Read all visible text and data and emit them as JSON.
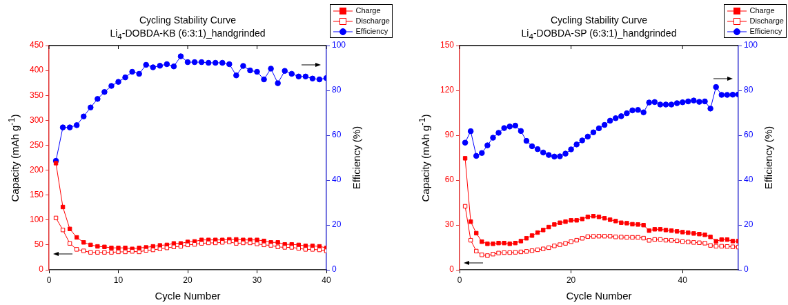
{
  "chart_data": [
    {
      "type": "line",
      "title": "Cycling Stability Curve",
      "subtitle": "Li$_{4}$-DOBDA-KB (6:3:1)_handgrinded",
      "xlabel": "Cycle Number",
      "ylabel": "Capacity (mAh g$^{-1}$)",
      "y2label": "Efficiency (%)",
      "x": [
        1,
        2,
        3,
        4,
        5,
        6,
        7,
        8,
        9,
        10,
        11,
        12,
        13,
        14,
        15,
        16,
        17,
        18,
        19,
        20,
        21,
        22,
        23,
        24,
        25,
        26,
        27,
        28,
        29,
        30,
        31,
        32,
        33,
        34,
        35,
        36,
        37,
        38,
        39,
        40
      ],
      "xlim": [
        0,
        40
      ],
      "xticks": [
        0,
        10,
        20,
        30,
        40
      ],
      "ylim": [
        0,
        450
      ],
      "yticks": [
        0,
        50,
        100,
        150,
        200,
        250,
        300,
        350,
        400,
        450
      ],
      "y2lim": [
        0,
        100
      ],
      "y2ticks": [
        0,
        20,
        40,
        60,
        80,
        100
      ],
      "grid": false,
      "legend": "top right",
      "line_style": "solid",
      "series": [
        {
          "name": "Charge",
          "color": "#ff0000",
          "marker": "square",
          "values": [
            214,
            126,
            82,
            65,
            55,
            50,
            47,
            46,
            44,
            44,
            44,
            42,
            44,
            45,
            47,
            49,
            50,
            53,
            53,
            56,
            57,
            60,
            60,
            60,
            60,
            61,
            61,
            60,
            60,
            60,
            58,
            55,
            55,
            51,
            51,
            50,
            48,
            48,
            47,
            44
          ]
        },
        {
          "name": "Discharge",
          "color": "#ff0000",
          "marker": "square",
          "values": [
            104,
            80,
            53,
            41,
            38,
            35,
            35,
            35,
            35,
            36,
            36,
            37,
            36,
            39,
            40,
            42,
            44,
            46,
            47,
            50,
            51,
            53,
            54,
            54,
            55,
            56,
            53,
            54,
            54,
            52,
            50,
            49,
            46,
            45,
            45,
            43,
            41,
            41,
            40,
            38
          ]
        },
        {
          "name": "Efficiency",
          "color": "#0000ff",
          "marker": "circle",
          "axis": "y2",
          "values": [
            48.6,
            63.5,
            63.5,
            64.5,
            68.4,
            72.4,
            76.2,
            79.3,
            82,
            83.8,
            85.8,
            88.3,
            87.4,
            91.4,
            90.3,
            91,
            91.7,
            90.7,
            95.2,
            92.6,
            92.6,
            92.6,
            92.3,
            92.3,
            92.3,
            91.7,
            86.7,
            90.9,
            88.9,
            88.3,
            84.9,
            89.7,
            83.2,
            88.7,
            87.4,
            86.2,
            86.2,
            85.3,
            84.9,
            85.5
          ]
        }
      ]
    },
    {
      "type": "line",
      "title": "Cycling Stability Curve",
      "subtitle": "Li$_{4}$-DOBDA-SP (6:3:1)_handgrinded",
      "xlabel": "Cycle Number",
      "ylabel": "Capacity (mAh g$^{-1}$)",
      "y2label": "Efficiency (%)",
      "x": [
        1,
        2,
        3,
        4,
        5,
        6,
        7,
        8,
        9,
        10,
        11,
        12,
        13,
        14,
        15,
        16,
        17,
        18,
        19,
        20,
        21,
        22,
        23,
        24,
        25,
        26,
        27,
        28,
        29,
        30,
        31,
        32,
        33,
        34,
        35,
        36,
        37,
        38,
        39,
        40,
        41,
        42,
        43,
        44,
        45,
        46,
        47,
        48,
        49,
        50
      ],
      "xlim": [
        0,
        50
      ],
      "xticks": [
        0,
        20,
        40
      ],
      "ylim": [
        0,
        150
      ],
      "yticks": [
        0,
        30,
        60,
        90,
        120,
        150
      ],
      "y2lim": [
        0,
        100
      ],
      "y2ticks": [
        0,
        20,
        40,
        60,
        80,
        100
      ],
      "grid": false,
      "legend": "top right",
      "line_style": "solid",
      "series": [
        {
          "name": "Charge",
          "color": "#ff0000",
          "marker": "square",
          "values": [
            74.6,
            32.2,
            24.5,
            18.8,
            17.4,
            17.4,
            17.9,
            17.9,
            17.4,
            17.9,
            19.2,
            21.1,
            22.9,
            24.9,
            26.6,
            28.6,
            30.3,
            31.5,
            32.2,
            33.1,
            33.1,
            34,
            35.4,
            35.9,
            35.4,
            34.5,
            33.5,
            32.6,
            31.5,
            31.2,
            30.5,
            30.3,
            29.9,
            26.2,
            27.1,
            27.1,
            26.6,
            26.2,
            25.7,
            25.2,
            24.8,
            24.3,
            23.9,
            23.4,
            22,
            19.1,
            20.2,
            20.2,
            19.2,
            19.2
          ]
        },
        {
          "name": "Discharge",
          "color": "#ff0000",
          "marker": "square",
          "values": [
            42.5,
            19.8,
            12.5,
            10,
            9.5,
            10.5,
            11.2,
            11.5,
            11.5,
            11.7,
            12,
            12.3,
            12.8,
            13.4,
            14,
            14.8,
            16,
            16.8,
            17.7,
            18.8,
            19.8,
            21.1,
            22.2,
            22.4,
            22.5,
            22.5,
            22.5,
            22,
            21.9,
            21.7,
            21.7,
            21.7,
            21.2,
            19.7,
            20.3,
            20.3,
            19.8,
            19.7,
            19.4,
            18.9,
            18.6,
            18.3,
            18.1,
            17.8,
            16.3,
            15.8,
            15.8,
            15.6,
            15.4,
            15.2
          ]
        },
        {
          "name": "Efficiency",
          "color": "#0000ff",
          "marker": "circle",
          "axis": "y2",
          "values": [
            56.7,
            61.8,
            50.8,
            52.1,
            55.5,
            58.9,
            61.1,
            63.2,
            63.9,
            64.3,
            61.9,
            57.5,
            55.1,
            53.8,
            52.3,
            51.2,
            50.5,
            50.6,
            51.8,
            53.7,
            55.9,
            57.7,
            59.4,
            61.3,
            63.1,
            64.6,
            66.5,
            67.6,
            68.5,
            69.8,
            71.1,
            71.3,
            70.2,
            74.6,
            74.8,
            73.7,
            73.7,
            73.7,
            74.3,
            74.7,
            75.1,
            75.5,
            74.9,
            75.1,
            71.9,
            81.5,
            78,
            78,
            78.1,
            78.2
          ]
        }
      ]
    }
  ]
}
